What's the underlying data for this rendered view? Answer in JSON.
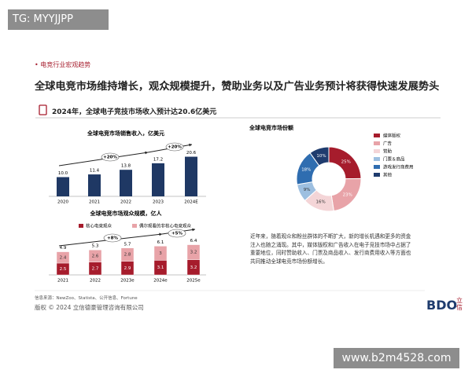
{
  "watermarks": {
    "top": "TG: MYYJJPP",
    "bottom": "www.b2m4528.com"
  },
  "slide": {
    "section": "电竞行业宏观趋势",
    "title": "全球电竞市场维持增长，观众规模提升，赞助业务以及广告业务预计将获得快速发展势头",
    "highlight": "2024年，全球电子竞技市场收入预计达20.6亿美元",
    "paragraph": "近年来，随着观众和粉丝群体的不断扩大，新的增长机遇和更多的资金注入也随之涌现。其中，媒体版权和广告收入在电子竞技市场中占据了重要地位，同时赞助收入、门票及商品收入、发行商费用收入等方面也共同推动全球电竞市场份额增长。",
    "source": "信息来源：NewZoo、Statista、公开信息、Fortune",
    "copyright": "版权 © 2024 立信德豪管理咨询有限公司",
    "logo": "BDO",
    "logo_cn": "立信"
  },
  "chart_data": [
    {
      "type": "bar",
      "title": "全球电竞市场销售收入，亿美元",
      "categories": [
        "2020",
        "2021",
        "2022",
        "2023",
        "2024E"
      ],
      "values": [
        10.0,
        11.4,
        13.8,
        17.2,
        20.6
      ],
      "value_labels": [
        "10.0",
        "11.4",
        "13.8",
        "17.2",
        "20.6"
      ],
      "color": "#1f3864",
      "annotations": [
        "+20%",
        "+20%"
      ]
    },
    {
      "type": "stacked_bar",
      "title": "全球电竞市场观众规模，亿人",
      "categories": [
        "2021",
        "2022",
        "2023e",
        "2024e",
        "2025e"
      ],
      "series": [
        {
          "name": "核心电竞观众",
          "color": "#a61c2c",
          "values": [
            2.5,
            2.7,
            2.9,
            3.1,
            3.2
          ]
        },
        {
          "name": "偶尔观看的非核心电竞观众",
          "color": "#e8a3a8",
          "values": [
            2.4,
            2.6,
            2.8,
            3.0,
            3.2
          ]
        }
      ],
      "totals": [
        4.9,
        5.3,
        5.7,
        6.1,
        6.4
      ],
      "annotations": [
        "+8%",
        "+5%"
      ]
    },
    {
      "type": "donut",
      "title": "全球电竞市场份额",
      "categories": [
        "媒体版权",
        "广告",
        "赞助",
        "门票＆商品",
        "游戏发行商费用",
        "其他"
      ],
      "values": [
        25,
        23,
        16,
        9,
        18,
        10
      ],
      "value_labels": [
        "25%",
        "23%",
        "16%",
        "9%",
        "18%",
        "10%"
      ],
      "colors": [
        "#a61c2c",
        "#e8a3a8",
        "#f4d5d7",
        "#9dbfe0",
        "#2f6db0",
        "#1f3c6e"
      ]
    }
  ]
}
